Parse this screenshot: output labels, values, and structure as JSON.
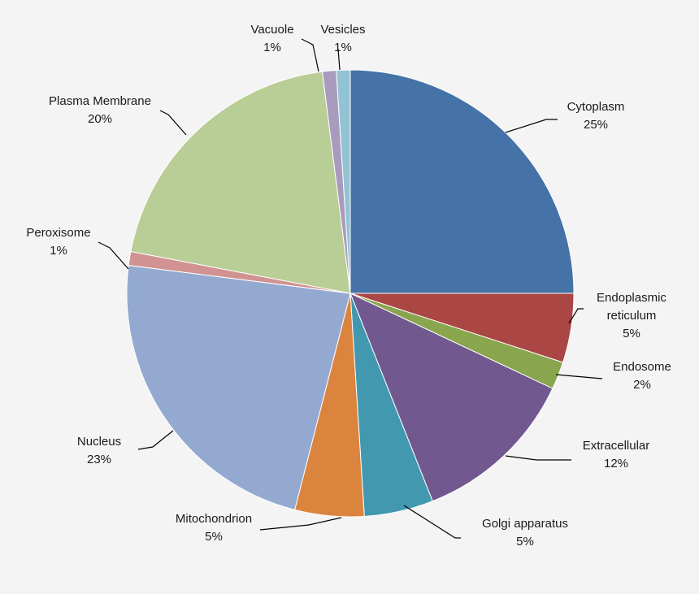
{
  "chart_data": {
    "type": "pie",
    "title": "",
    "slices": [
      {
        "label": "Cytoplasm",
        "value": 25,
        "pct": "25%",
        "color": "#4572a7"
      },
      {
        "label": "Endoplasmic reticulum",
        "value": 5,
        "pct": "5%",
        "color": "#aa4643"
      },
      {
        "label": "Endosome",
        "value": 2,
        "pct": "2%",
        "color": "#89a54e"
      },
      {
        "label": "Extracellular",
        "value": 12,
        "pct": "12%",
        "color": "#71588f"
      },
      {
        "label": "Golgi apparatus",
        "value": 5,
        "pct": "5%",
        "color": "#4198af"
      },
      {
        "label": "Mitochondrion",
        "value": 5,
        "pct": "5%",
        "color": "#db843d"
      },
      {
        "label": "Nucleus",
        "value": 23,
        "pct": "23%",
        "color": "#93a9cf"
      },
      {
        "label": "Peroxisome",
        "value": 1,
        "pct": "1%",
        "color": "#d19392"
      },
      {
        "label": "Plasma Membrane",
        "value": 20,
        "pct": "20%",
        "color": "#b9cd96"
      },
      {
        "label": "Vacuole",
        "value": 1,
        "pct": "1%",
        "color": "#a99bbd"
      },
      {
        "label": "Vesicles",
        "value": 1,
        "pct": "1%",
        "color": "#92c3d4"
      }
    ],
    "labels_display": [
      {
        "name": "Cytoplasm",
        "pct": "25%"
      },
      {
        "name": "Endoplasmic\nreticulum",
        "pct": "5%"
      },
      {
        "name": "Endosome",
        "pct": "2%"
      },
      {
        "name": "Extracellular",
        "pct": "12%"
      },
      {
        "name": "Golgi apparatus",
        "pct": "5%"
      },
      {
        "name": "Mitochondrion",
        "pct": "5%"
      },
      {
        "name": "Nucleus",
        "pct": "23%"
      },
      {
        "name": "Peroxisome",
        "pct": "1%"
      },
      {
        "name": "Plasma Membrane",
        "pct": "20%"
      },
      {
        "name": "Vacuole",
        "pct": "1%"
      },
      {
        "name": "Vesicles",
        "pct": "1%"
      }
    ],
    "legend": "none",
    "data_labels": "outside with leader lines"
  }
}
